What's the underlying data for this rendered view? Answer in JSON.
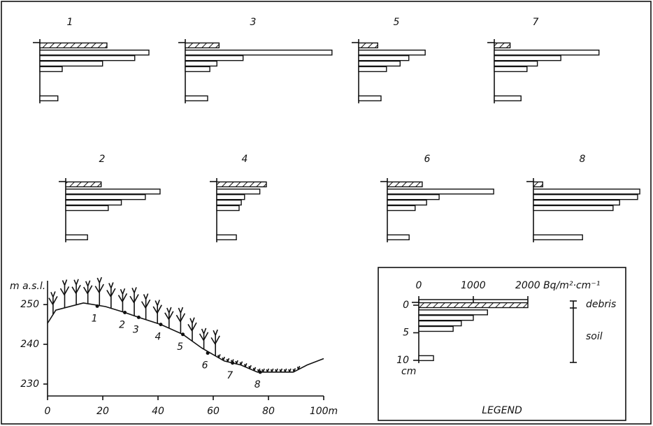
{
  "chart_data": [
    {
      "type": "bar",
      "title": "1",
      "depths": [
        0,
        1.3,
        2.3,
        3.3,
        4.3,
        9.6
      ],
      "values": [
        1230,
        2000,
        1740,
        1150,
        410,
        330
      ]
    },
    {
      "type": "bar",
      "title": "2",
      "depths": [
        0,
        1.3,
        2.3,
        3.3,
        4.3,
        9.6
      ],
      "values": [
        650,
        1730,
        1460,
        1020,
        780,
        400
      ]
    },
    {
      "type": "bar",
      "title": "3",
      "depths": [
        0,
        1.3,
        2.3,
        3.3,
        4.3,
        9.6
      ],
      "values": [
        620,
        2690,
        1060,
        580,
        450,
        410
      ]
    },
    {
      "type": "bar",
      "title": "4",
      "depths": [
        0,
        1.3,
        2.3,
        3.3,
        4.3,
        9.6
      ],
      "values": [
        910,
        790,
        510,
        450,
        410,
        360
      ]
    },
    {
      "type": "bar",
      "title": "5",
      "depths": [
        0,
        1.3,
        2.3,
        3.3,
        4.3,
        9.6
      ],
      "values": [
        350,
        1220,
        920,
        760,
        510,
        410
      ]
    },
    {
      "type": "bar",
      "title": "6",
      "depths": [
        0,
        1.3,
        2.3,
        3.3,
        4.3,
        9.6
      ],
      "values": [
        640,
        1950,
        950,
        720,
        510,
        400
      ]
    },
    {
      "type": "bar",
      "title": "7",
      "depths": [
        0,
        1.3,
        2.3,
        3.3,
        4.3,
        9.6
      ],
      "values": [
        290,
        1920,
        1220,
        790,
        600,
        490
      ]
    },
    {
      "type": "bar",
      "title": "8",
      "depths": [
        0,
        1.3,
        2.3,
        3.3,
        4.3,
        9.6
      ],
      "values": [
        170,
        1950,
        1910,
        1580,
        1460,
        900
      ]
    },
    {
      "type": "line",
      "ylabel": "m a.s.l.",
      "x": [
        0,
        3,
        13,
        21,
        28,
        33,
        41,
        49,
        56,
        64,
        70,
        76,
        89,
        94,
        100
      ],
      "values": [
        245.3,
        248.6,
        250.4,
        249.5,
        248,
        246.8,
        245,
        242.5,
        239,
        235.8,
        234.8,
        233,
        233,
        234.8,
        236.4
      ],
      "points": {
        "x": [
          18,
          28,
          33,
          41,
          49,
          58,
          67,
          77
        ],
        "values": [
          249.6,
          248,
          246.8,
          245,
          242.5,
          237.8,
          235.3,
          233
        ],
        "labels": [
          "1",
          "2",
          "3",
          "4",
          "5",
          "6",
          "7",
          "8"
        ]
      },
      "xlim": [
        0,
        100
      ],
      "ylim": [
        227,
        256
      ],
      "xticks": [
        0,
        20,
        40,
        60,
        80,
        {
          "value": 100,
          "label": "100m"
        }
      ],
      "yticks": [
        230,
        240,
        250
      ]
    },
    {
      "type": "bar",
      "title": "LEGEND",
      "ylabel": "cm",
      "annotations": [
        "debris",
        "soil"
      ],
      "depths": [
        0,
        1.3,
        2.3,
        3.3,
        4.3,
        9.6
      ],
      "values": [
        2000,
        1260,
        1000,
        780,
        630,
        270
      ],
      "xlim": [
        0,
        2000
      ],
      "xticks": [
        0,
        1000,
        {
          "value": 2000,
          "label": "2000 Bq/m²·cm⁻¹"
        }
      ],
      "ylim": [
        0,
        10
      ],
      "yticks": [
        0,
        5,
        10
      ]
    }
  ]
}
